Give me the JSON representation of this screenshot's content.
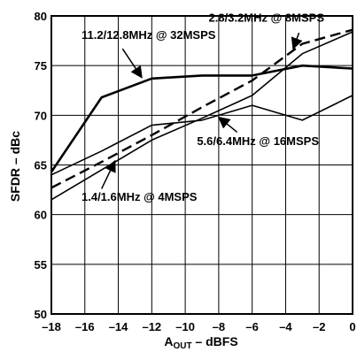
{
  "chart_data": {
    "type": "line",
    "xlabel_main": "A",
    "xlabel_sub": "OUT",
    "xlabel_rest": " – dBFS",
    "ylabel": "SFDR – dBc",
    "xlim": [
      -18,
      0
    ],
    "ylim": [
      50,
      80
    ],
    "x_ticks": [
      -18,
      -16,
      -14,
      -12,
      -10,
      -8,
      -6,
      -4,
      -2,
      0
    ],
    "y_ticks": [
      50,
      55,
      60,
      65,
      70,
      75,
      80
    ],
    "x_tick_labels": [
      "–18",
      "–16",
      "–14",
      "–12",
      "–10",
      "–8",
      "–6",
      "–4",
      "–2",
      "0"
    ],
    "y_tick_labels": [
      "50",
      "55",
      "60",
      "65",
      "70",
      "75",
      "80"
    ],
    "grid": true,
    "series": [
      {
        "name": "11.2/12.8MHz @ 32MSPS",
        "style": "solid-thick",
        "x": [
          -18,
          -15,
          -12,
          -9,
          -6,
          -3,
          0
        ],
        "y": [
          64.3,
          71.8,
          73.7,
          74.0,
          74.0,
          75.0,
          74.7
        ]
      },
      {
        "name": "2.8/3.2MHz @ 8MSPS",
        "style": "dashed",
        "x": [
          -18,
          -15,
          -12,
          -9,
          -6,
          -3,
          0
        ],
        "y": [
          62.7,
          65.3,
          68.0,
          70.8,
          73.5,
          77.2,
          78.6
        ]
      },
      {
        "name": "5.6/6.4MHz @ 16MSPS",
        "style": "solid-thin",
        "x": [
          -18,
          -15,
          -12,
          -9,
          -6,
          -3,
          0
        ],
        "y": [
          64.0,
          66.4,
          69.0,
          69.5,
          71.0,
          69.5,
          72.0
        ]
      },
      {
        "name": "1.4/1.6MHz @ 4MSPS",
        "style": "solid-thin",
        "x": [
          -18,
          -15,
          -12,
          -9,
          -6,
          -3,
          0
        ],
        "y": [
          61.5,
          64.5,
          67.5,
          69.7,
          72.0,
          76.2,
          78.4
        ]
      }
    ],
    "annotations": [
      {
        "text": "11.2/12.8MHz @ 32MSPS",
        "label_x": -16.2,
        "label_y": 77.7,
        "arrow_from": [
          -13.75,
          76.7
        ],
        "arrow_to": [
          -12.6,
          73.8
        ]
      },
      {
        "text": "2.8/3.2MHz @ 8MSPS",
        "label_x": -8.6,
        "label_y": 79.4,
        "arrow_from": [
          -3.2,
          78.3
        ],
        "arrow_to": [
          -3.55,
          76.7
        ]
      },
      {
        "text": "5.6/6.4MHz @ 16MSPS",
        "label_x": -9.3,
        "label_y": 67.0,
        "arrow_from": [
          -6.9,
          68.3
        ],
        "arrow_to": [
          -8.0,
          69.8
        ]
      },
      {
        "text": "1.4/1.6MHz @ 4MSPS",
        "label_x": -16.2,
        "label_y": 61.4,
        "arrow_from": [
          -15.0,
          62.6
        ],
        "arrow_to": [
          -14.2,
          65.4
        ]
      }
    ]
  }
}
